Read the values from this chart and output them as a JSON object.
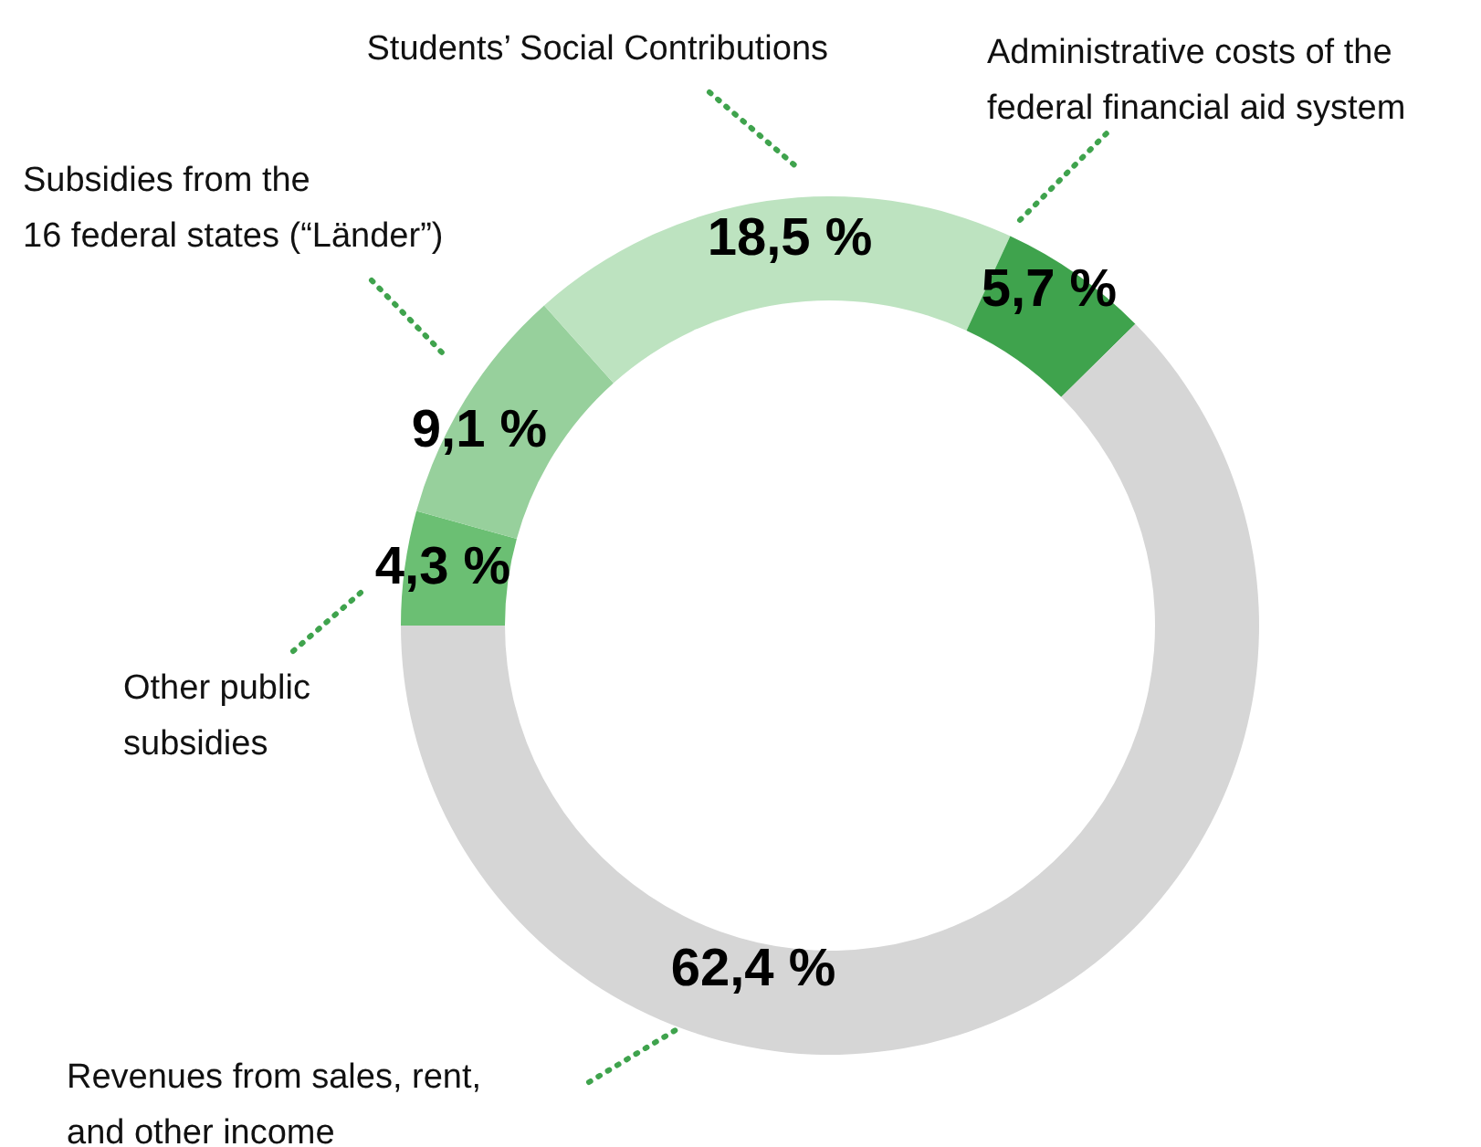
{
  "chart_data": {
    "type": "donut",
    "categories": [
      "Other public subsidies",
      "Subsidies from the 16 federal states (“Länder”)",
      "Students’ Social Contributions",
      "Administrative costs of the federal financial aid system",
      "Revenues from sales, rent, and other income"
    ],
    "values": [
      4.3,
      9.1,
      18.5,
      5.7,
      62.4
    ],
    "colors": [
      "#6bbf73",
      "#97d09c",
      "#bde3c0",
      "#3fa34d",
      "#d6d6d6"
    ],
    "value_labels": [
      "4,3 %",
      "9,1 %",
      "18,5 %",
      "5,7 %",
      "62,4 %"
    ]
  }
}
